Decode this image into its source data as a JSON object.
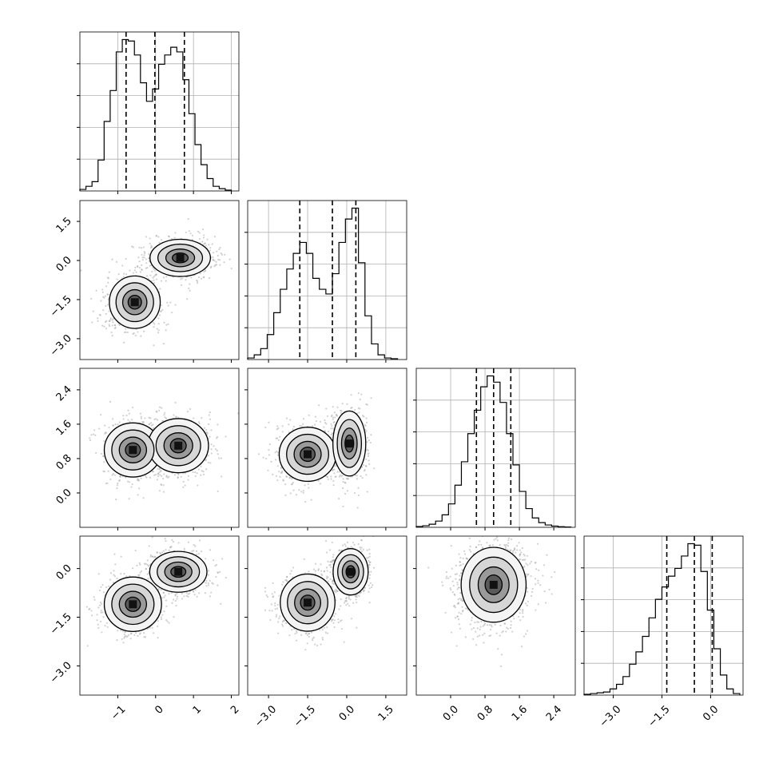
{
  "figure": {
    "type": "corner plot",
    "n_parameters": 4,
    "background": "#ffffff",
    "ink_color": "#000000",
    "grid_color": "#b0b0b0",
    "scatter_color": "#9a9a9a"
  },
  "chart_data": [
    {
      "type": "histogram",
      "panel": "marginal-1",
      "xlim": [
        -2.0,
        2.2
      ],
      "bins": [
        -2.0,
        -1.84,
        -1.68,
        -1.52,
        -1.36,
        -1.2,
        -1.04,
        -0.88,
        -0.72,
        -0.56,
        -0.4,
        -0.24,
        -0.08,
        0.08,
        0.24,
        0.4,
        0.56,
        0.72,
        0.88,
        1.04,
        1.2,
        1.36,
        1.52,
        1.68,
        1.84,
        2.0
      ],
      "density": [
        0.01,
        0.03,
        0.06,
        0.2,
        0.45,
        0.65,
        0.9,
        0.98,
        0.97,
        0.88,
        0.7,
        0.58,
        0.66,
        0.82,
        0.88,
        0.93,
        0.9,
        0.72,
        0.5,
        0.3,
        0.17,
        0.08,
        0.03,
        0.015,
        0.005
      ],
      "quantiles": [
        -0.78,
        -0.02,
        0.76
      ],
      "x_ticks": [
        -1,
        0,
        1,
        2
      ],
      "x_tick_labels": [
        "−1",
        "0",
        "1",
        "2"
      ],
      "grid": true
    },
    {
      "type": "histogram",
      "panel": "marginal-2",
      "xlim": [
        -3.8,
        2.3
      ],
      "bins": [
        -3.8,
        -3.55,
        -3.3,
        -3.05,
        -2.8,
        -2.55,
        -2.3,
        -2.05,
        -1.8,
        -1.55,
        -1.3,
        -1.05,
        -0.8,
        -0.55,
        -0.3,
        -0.05,
        0.2,
        0.45,
        0.7,
        0.95,
        1.2,
        1.45,
        1.7,
        1.95
      ],
      "density": [
        0.01,
        0.03,
        0.07,
        0.16,
        0.3,
        0.45,
        0.58,
        0.68,
        0.75,
        0.68,
        0.52,
        0.45,
        0.42,
        0.55,
        0.75,
        0.9,
        0.97,
        0.62,
        0.28,
        0.1,
        0.03,
        0.01,
        0.005
      ],
      "quantiles": [
        -1.8,
        -0.55,
        0.35
      ],
      "x_ticks": [
        -3.0,
        -1.5,
        0.0,
        1.5
      ],
      "x_tick_labels": [
        "−3.0",
        "−1.5",
        "0.0",
        "1.5"
      ],
      "grid": true
    },
    {
      "type": "histogram",
      "panel": "marginal-3",
      "xlim": [
        -0.8,
        2.9
      ],
      "bins": [
        -0.8,
        -0.65,
        -0.5,
        -0.35,
        -0.2,
        -0.05,
        0.1,
        0.25,
        0.4,
        0.55,
        0.7,
        0.85,
        1.0,
        1.15,
        1.3,
        1.45,
        1.6,
        1.75,
        1.9,
        2.05,
        2.2,
        2.35,
        2.5,
        2.65,
        2.8
      ],
      "density": [
        0.005,
        0.01,
        0.02,
        0.04,
        0.08,
        0.15,
        0.27,
        0.42,
        0.6,
        0.75,
        0.9,
        0.97,
        0.93,
        0.8,
        0.6,
        0.4,
        0.23,
        0.12,
        0.06,
        0.03,
        0.015,
        0.008,
        0.004,
        0.002
      ],
      "quantiles": [
        0.6,
        1.0,
        1.4
      ],
      "x_ticks": [
        0.0,
        0.8,
        1.6,
        2.4
      ],
      "x_tick_labels": [
        "0.0",
        "0.8",
        "1.6",
        "2.4"
      ],
      "grid": true
    },
    {
      "type": "histogram",
      "panel": "marginal-4",
      "xlim": [
        -3.9,
        1.0
      ],
      "bins": [
        -3.9,
        -3.7,
        -3.5,
        -3.3,
        -3.1,
        -2.9,
        -2.7,
        -2.5,
        -2.3,
        -2.1,
        -1.9,
        -1.7,
        -1.5,
        -1.3,
        -1.1,
        -0.9,
        -0.7,
        -0.5,
        -0.3,
        -0.1,
        0.1,
        0.3,
        0.5,
        0.7,
        0.9
      ],
      "density": [
        0.005,
        0.01,
        0.015,
        0.02,
        0.04,
        0.07,
        0.12,
        0.2,
        0.28,
        0.38,
        0.5,
        0.62,
        0.7,
        0.77,
        0.82,
        0.9,
        0.98,
        0.97,
        0.8,
        0.55,
        0.3,
        0.13,
        0.04,
        0.01
      ],
      "quantiles": [
        -1.35,
        -0.5,
        0.05
      ],
      "x_ticks": [
        -3.0,
        -1.5,
        0.0
      ],
      "x_tick_labels": [
        "−3.0",
        "−1.5",
        "0.0"
      ],
      "grid": true
    },
    {
      "type": "scatter",
      "panel": "joint-2-1",
      "xlim": [
        -2.0,
        2.2
      ],
      "ylim": [
        -3.8,
        2.3
      ],
      "y_ticks": [
        -3.0,
        -1.5,
        0.0,
        1.5
      ],
      "y_tick_labels": [
        "−3.0",
        "−1.5",
        "0.0",
        "1.5"
      ],
      "modes": [
        {
          "x": -0.55,
          "y": -1.6,
          "sx": 0.32,
          "sy": 0.48,
          "weight": 0.5
        },
        {
          "x": 0.65,
          "y": 0.1,
          "sx": 0.38,
          "sy": 0.34,
          "weight": 0.5
        }
      ],
      "contour_levels": [
        0.12,
        0.3,
        0.55,
        0.8
      ]
    },
    {
      "type": "scatter",
      "panel": "joint-3-1",
      "xlim": [
        -2.0,
        2.2
      ],
      "ylim": [
        -0.8,
        2.9
      ],
      "y_ticks": [
        0.0,
        0.8,
        1.6,
        2.4
      ],
      "y_tick_labels": [
        "0.0",
        "0.8",
        "1.6",
        "2.4"
      ],
      "modes": [
        {
          "x": -0.6,
          "y": 1.0,
          "sx": 0.36,
          "sy": 0.3,
          "weight": 0.5
        },
        {
          "x": 0.6,
          "y": 1.1,
          "sx": 0.38,
          "sy": 0.3,
          "weight": 0.5
        }
      ],
      "contour_levels": [
        0.12,
        0.3,
        0.55,
        0.8
      ]
    },
    {
      "type": "scatter",
      "panel": "joint-3-2",
      "xlim": [
        -3.8,
        2.3
      ],
      "ylim": [
        -0.8,
        2.9
      ],
      "modes": [
        {
          "x": -1.5,
          "y": 0.9,
          "sx": 0.52,
          "sy": 0.3,
          "weight": 0.5
        },
        {
          "x": 0.1,
          "y": 1.15,
          "sx": 0.3,
          "sy": 0.36,
          "weight": 0.5
        }
      ],
      "contour_levels": [
        0.12,
        0.3,
        0.55,
        0.8
      ]
    },
    {
      "type": "scatter",
      "panel": "joint-4-1",
      "xlim": [
        -2.0,
        2.2
      ],
      "ylim": [
        -3.9,
        1.0
      ],
      "y_ticks": [
        -3.0,
        -1.5,
        0.0
      ],
      "y_tick_labels": [
        "−3.0",
        "−1.5",
        "0.0"
      ],
      "modes": [
        {
          "x": -0.6,
          "y": -1.1,
          "sx": 0.36,
          "sy": 0.4,
          "weight": 0.5
        },
        {
          "x": 0.6,
          "y": -0.1,
          "sx": 0.36,
          "sy": 0.3,
          "weight": 0.5
        }
      ],
      "contour_levels": [
        0.12,
        0.3,
        0.55,
        0.8
      ]
    },
    {
      "type": "scatter",
      "panel": "joint-4-2",
      "xlim": [
        -3.8,
        2.3
      ],
      "ylim": [
        -3.9,
        1.0
      ],
      "modes": [
        {
          "x": -1.5,
          "y": -1.05,
          "sx": 0.5,
          "sy": 0.42,
          "weight": 0.5
        },
        {
          "x": 0.15,
          "y": -0.1,
          "sx": 0.32,
          "sy": 0.34,
          "weight": 0.5
        }
      ],
      "contour_levels": [
        0.12,
        0.3,
        0.55,
        0.8
      ]
    },
    {
      "type": "scatter",
      "panel": "joint-4-3",
      "xlim": [
        -0.8,
        2.9
      ],
      "ylim": [
        -3.9,
        1.0
      ],
      "modes": [
        {
          "x": 1.0,
          "y": -0.5,
          "sx": 0.36,
          "sy": 0.55,
          "weight": 1.0
        }
      ],
      "contour_levels": [
        0.12,
        0.3,
        0.55,
        0.8
      ]
    }
  ]
}
